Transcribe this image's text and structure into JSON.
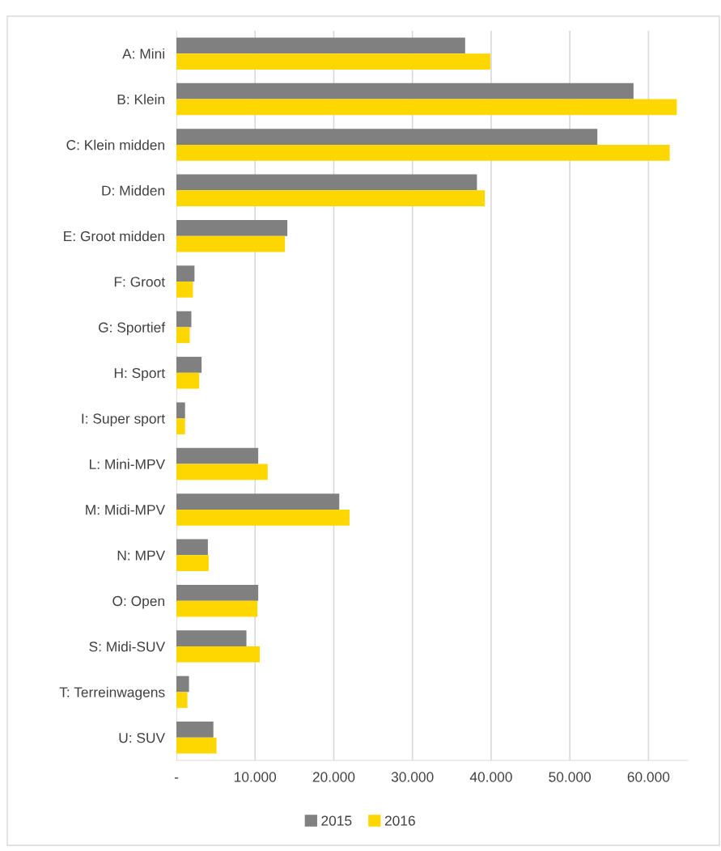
{
  "chart_data": {
    "type": "bar",
    "orientation": "horizontal",
    "categories": [
      "A: Mini",
      "B: Klein",
      "C: Klein midden",
      "D: Midden",
      "E: Groot midden",
      "F: Groot",
      "G: Sportief",
      "H: Sport",
      "I: Super sport",
      "L: Mini-MPV",
      "M: Midi-MPV",
      "N: MPV",
      "O: Open",
      "S: Midi-SUV",
      "T: Terreinwagens",
      "U: SUV"
    ],
    "series": [
      {
        "name": "2015",
        "color": "#808080",
        "values": [
          36700,
          58100,
          53500,
          38200,
          14100,
          2300,
          1900,
          3200,
          1100,
          10400,
          20700,
          4000,
          10400,
          8900,
          1600,
          4700
        ]
      },
      {
        "name": "2016",
        "color": "#ffd700",
        "values": [
          39900,
          63600,
          62700,
          39200,
          13800,
          2100,
          1700,
          2900,
          1100,
          11600,
          22000,
          4100,
          10300,
          10600,
          1400,
          5100
        ]
      }
    ],
    "xlim": [
      0,
      65000
    ],
    "xticks": [
      {
        "value": 0,
        "label": "-"
      },
      {
        "value": 10000,
        "label": "10.000"
      },
      {
        "value": 20000,
        "label": "20.000"
      },
      {
        "value": 30000,
        "label": "30.000"
      },
      {
        "value": 40000,
        "label": "40.000"
      },
      {
        "value": 50000,
        "label": "50.000"
      },
      {
        "value": 60000,
        "label": "60.000"
      }
    ],
    "grid": "x",
    "legend": "bottom"
  }
}
